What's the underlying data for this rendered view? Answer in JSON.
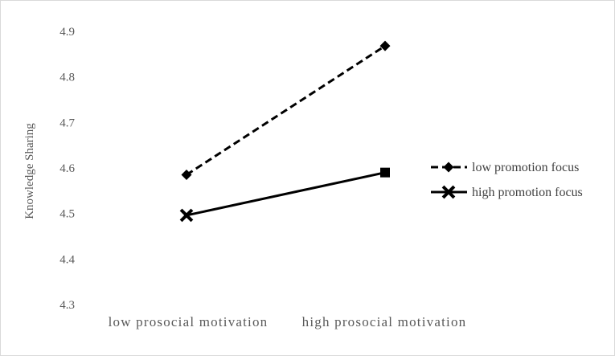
{
  "chart_data": {
    "type": "line",
    "categories": [
      "low prosocial motivation",
      "high prosocial motivation"
    ],
    "ylabel": "Knowledge Sharing",
    "xlabel": "",
    "ylim": [
      4.3,
      4.9
    ],
    "yticks": [
      "4.3",
      "4.4",
      "4.5",
      "4.6",
      "4.7",
      "4.8",
      "4.9"
    ],
    "grid": false,
    "legend_position": "right",
    "series": [
      {
        "name": "low promotion focus",
        "values": [
          4.585,
          4.868
        ],
        "line_style": "dashed",
        "marker": "diamond",
        "color": "#000000"
      },
      {
        "name": "high promotion focus",
        "values": [
          4.496,
          4.59
        ],
        "line_style": "solid",
        "marker": "x",
        "color": "#000000"
      }
    ]
  }
}
